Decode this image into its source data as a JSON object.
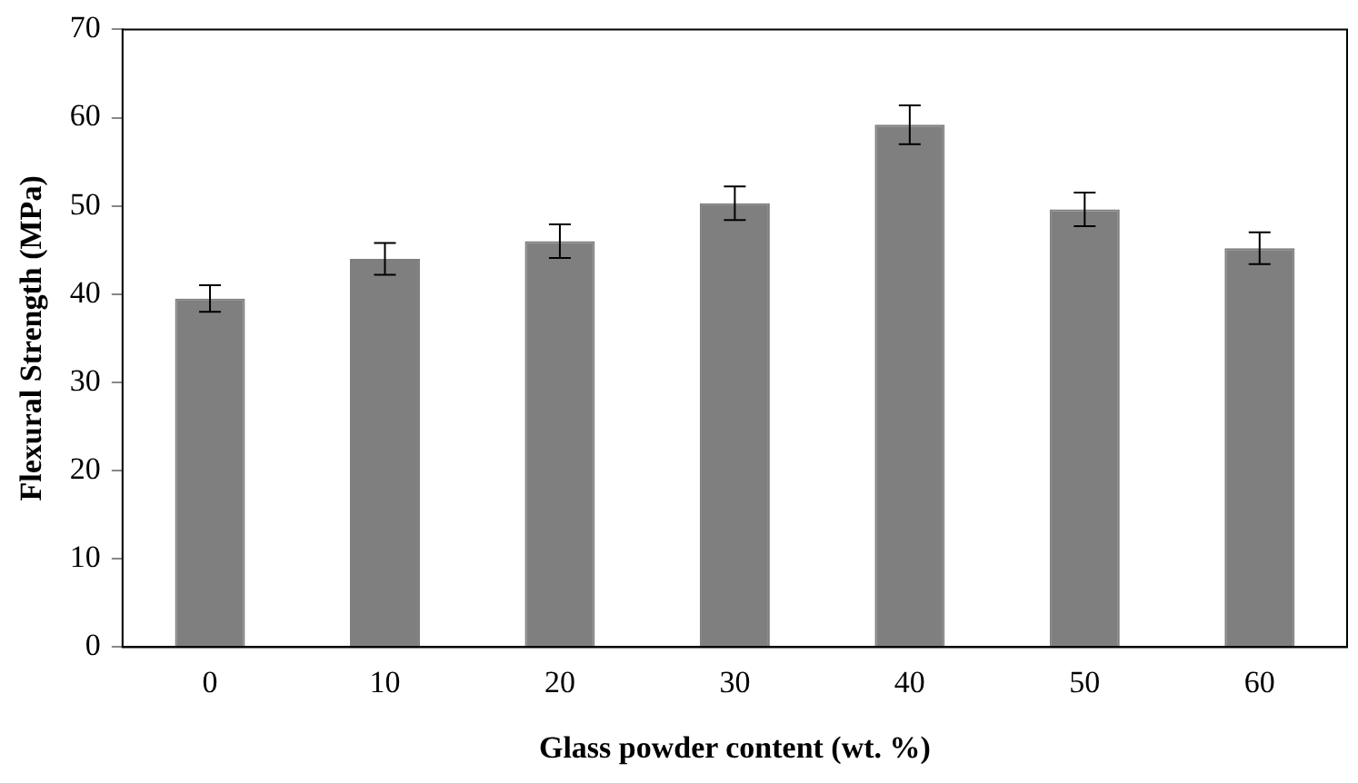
{
  "chart_data": {
    "type": "bar",
    "xlabel": "Glass powder content (wt. %)",
    "ylabel": "Flexural Strength (MPa)",
    "categories": [
      "0",
      "10",
      "20",
      "30",
      "40",
      "50",
      "60"
    ],
    "values": [
      39.5,
      44.0,
      46.0,
      50.3,
      59.2,
      49.6,
      45.2
    ],
    "errors": [
      1.5,
      1.8,
      1.9,
      1.9,
      2.2,
      1.9,
      1.8
    ],
    "color": "#7f7f7f",
    "ylim": [
      0,
      70
    ],
    "yticks": [
      0,
      10,
      20,
      30,
      40,
      50,
      60,
      70
    ],
    "grid": false,
    "legend": false
  }
}
